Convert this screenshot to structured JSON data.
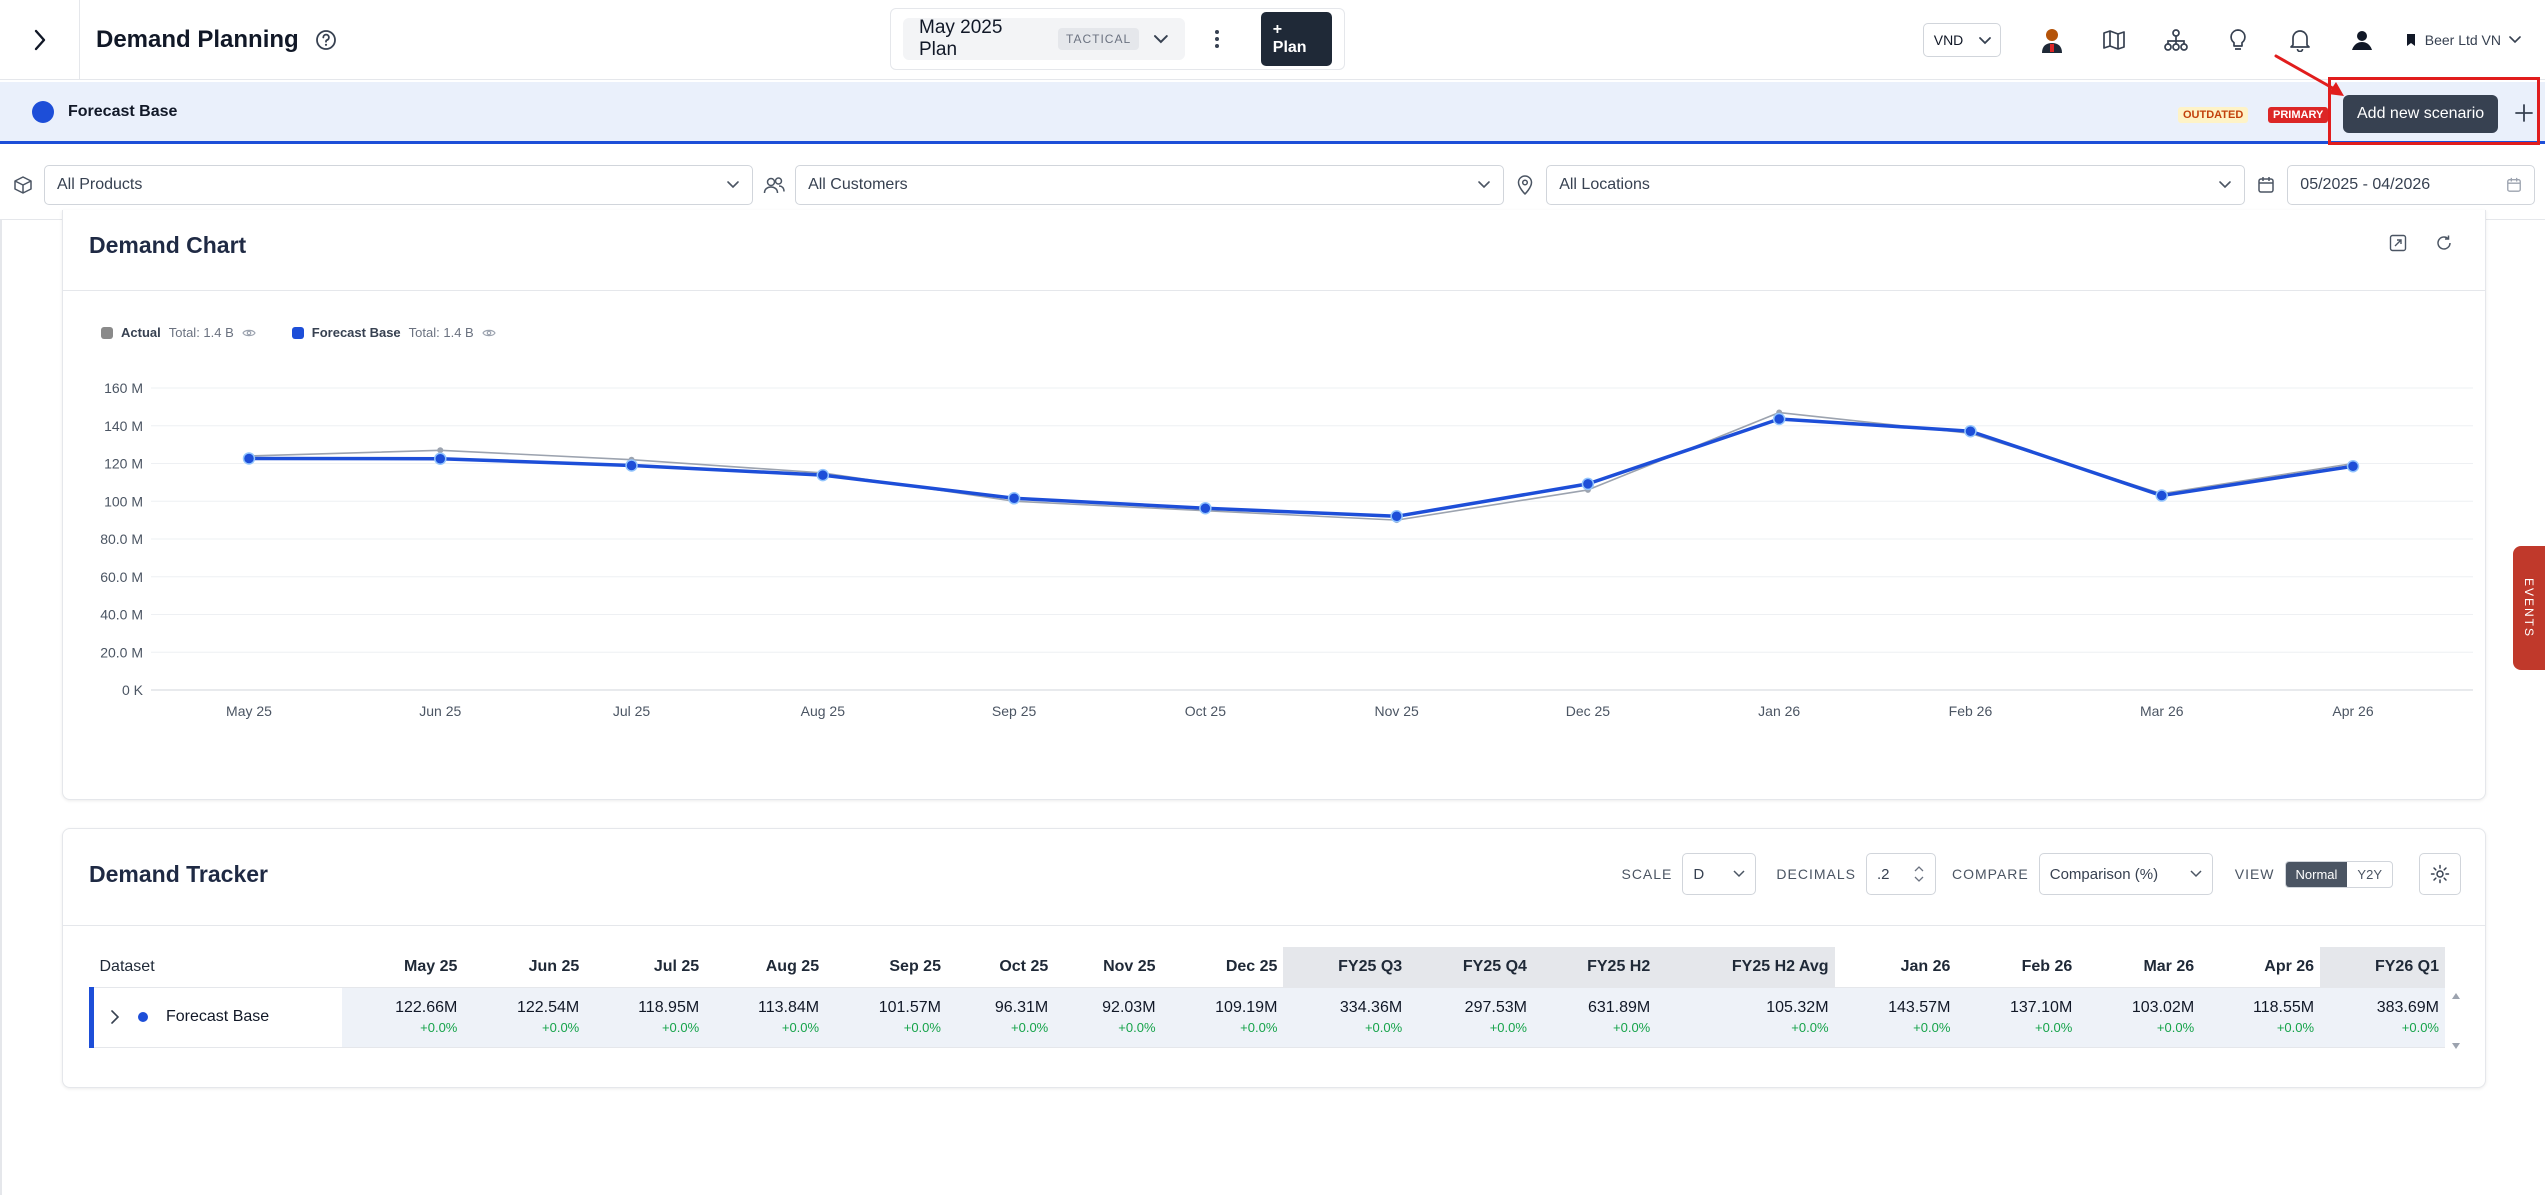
{
  "header": {
    "title": "Demand Planning",
    "plan_name": "May 2025 Plan",
    "plan_tag": "TACTICAL",
    "add_plan_label": "+ Plan",
    "currency": "VND",
    "company": "Beer Ltd VN"
  },
  "scenario": {
    "name": "Forecast Base",
    "badge_outdated": "OUTDATED",
    "badge_primary": "PRIMARY",
    "tooltip": "Add new scenario",
    "color": "#1d4ed8"
  },
  "filters": {
    "products": "All Products",
    "customers": "All Customers",
    "locations": "All Locations",
    "date_range": "05/2025 - 04/2026"
  },
  "chart_card": {
    "title": "Demand Chart",
    "legend": [
      {
        "name": "Actual",
        "total": "Total: 1.4 B",
        "color": "#8a8a8a"
      },
      {
        "name": "Forecast Base",
        "total": "Total: 1.4 B",
        "color": "#1d4ed8"
      }
    ]
  },
  "chart_data": {
    "type": "line",
    "categories": [
      "May 25",
      "Jun 25",
      "Jul 25",
      "Aug 25",
      "Sep 25",
      "Oct 25",
      "Nov 25",
      "Dec 25",
      "Jan 26",
      "Feb 26",
      "Mar 26",
      "Apr 26"
    ],
    "y_ticks": [
      "0 K",
      "20.0 M",
      "40.0 M",
      "60.0 M",
      "80.0 M",
      "100 M",
      "120 M",
      "140 M",
      "160 M"
    ],
    "ylim": [
      0,
      160
    ],
    "y_unit": "M",
    "series": [
      {
        "name": "Actual",
        "color": "#9ca3af",
        "values": [
          124,
          127,
          122,
          115,
          100,
          95,
          90,
          106,
          147,
          136,
          104,
          120
        ]
      },
      {
        "name": "Forecast Base",
        "color": "#1d4ed8",
        "values": [
          122.66,
          122.54,
          118.95,
          113.84,
          101.57,
          96.31,
          92.03,
          109.19,
          143.57,
          137.1,
          103.02,
          118.55
        ]
      }
    ],
    "grid": true,
    "legend_position": "top-left"
  },
  "tracker": {
    "title": "Demand Tracker",
    "scale_label": "SCALE",
    "scale_value": "D",
    "decimals_label": "DECIMALS",
    "decimals_value": ".2",
    "compare_label": "COMPARE",
    "compare_value": "Comparison (%)",
    "view_label": "VIEW",
    "view_options": [
      "Normal",
      "Y2Y"
    ],
    "columns": [
      "Dataset",
      "May 25",
      "Jun 25",
      "Jul 25",
      "Aug 25",
      "Sep 25",
      "Oct 25",
      "Nov 25",
      "Dec 25",
      "FY25 Q3",
      "FY25 Q4",
      "FY25 H2",
      "FY25 H2 Avg",
      "Jan 26",
      "Feb 26",
      "Mar 26",
      "Apr 26",
      "FY26 Q1"
    ],
    "row": {
      "name": "Forecast Base",
      "values": [
        "122.66M",
        "122.54M",
        "118.95M",
        "113.84M",
        "101.57M",
        "96.31M",
        "92.03M",
        "109.19M",
        "334.36M",
        "297.53M",
        "631.89M",
        "105.32M",
        "143.57M",
        "137.10M",
        "103.02M",
        "118.55M",
        "383.69M"
      ],
      "pct": [
        "+0.0%",
        "+0.0%",
        "+0.0%",
        "+0.0%",
        "+0.0%",
        "+0.0%",
        "+0.0%",
        "+0.0%",
        "+0.0%",
        "+0.0%",
        "+0.0%",
        "+0.0%",
        "+0.0%",
        "+0.0%",
        "+0.0%",
        "+0.0%",
        "+0.0%"
      ]
    }
  },
  "events_tab": "EVENTS"
}
